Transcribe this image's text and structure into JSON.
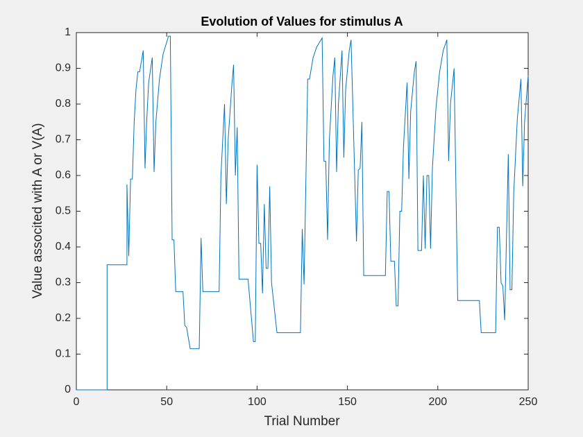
{
  "chart_data": {
    "type": "line",
    "title": "Evolution of Values for stimulus A",
    "xlabel": "Trial Number",
    "ylabel": "Value associted with A or V(A)",
    "xlim": [
      0,
      250
    ],
    "ylim": [
      0,
      1
    ],
    "xticks": [
      0,
      50,
      100,
      150,
      200,
      250
    ],
    "yticks": [
      0,
      0.1,
      0.2,
      0.3,
      0.4,
      0.5,
      0.6,
      0.7,
      0.8,
      0.9,
      1
    ],
    "color": "#0072bd",
    "x": [
      0,
      17,
      17,
      28,
      28,
      29,
      30,
      31,
      32,
      33,
      34,
      35,
      37,
      38,
      39,
      40,
      42,
      43,
      44,
      46,
      48,
      51,
      52,
      53,
      54,
      55,
      59,
      60,
      61,
      63,
      68,
      69,
      70,
      79,
      80,
      82,
      83,
      84,
      86,
      87,
      88,
      89,
      90,
      95,
      98,
      99,
      100,
      101,
      102,
      103,
      104,
      105,
      106,
      107,
      108,
      111,
      124,
      125,
      126,
      128,
      129,
      131,
      133,
      136,
      137,
      138,
      139,
      140,
      142,
      143,
      144,
      145,
      147,
      148,
      149,
      151,
      152,
      155,
      156,
      157,
      158,
      159,
      171,
      172,
      173,
      174,
      176,
      177,
      178,
      179,
      180,
      181,
      183,
      184,
      185,
      187,
      188,
      189,
      191,
      192,
      193,
      194,
      195,
      196,
      197,
      199,
      201,
      203,
      205,
      206,
      207,
      209,
      211,
      223,
      224,
      232,
      233,
      234,
      235,
      236,
      237,
      239,
      240,
      241,
      242,
      244,
      246,
      247,
      248,
      250
    ],
    "values": [
      0,
      0,
      0.35,
      0.35,
      0.575,
      0.375,
      0.59,
      0.59,
      0.75,
      0.84,
      0.89,
      0.89,
      0.95,
      0.62,
      0.76,
      0.86,
      0.93,
      0.61,
      0.75,
      0.87,
      0.94,
      0.99,
      0.99,
      0.42,
      0.42,
      0.275,
      0.275,
      0.18,
      0.175,
      0.115,
      0.115,
      0.425,
      0.275,
      0.275,
      0.6,
      0.8,
      0.52,
      0.7,
      0.85,
      0.91,
      0.6,
      0.735,
      0.31,
      0.31,
      0.135,
      0.135,
      0.63,
      0.41,
      0.41,
      0.27,
      0.52,
      0.34,
      0.34,
      0.57,
      0.3,
      0.16,
      0.16,
      0.45,
      0.295,
      0.87,
      0.87,
      0.93,
      0.96,
      0.985,
      0.64,
      0.64,
      0.42,
      0.7,
      0.88,
      0.93,
      0.61,
      0.8,
      0.95,
      0.65,
      0.84,
      0.95,
      0.98,
      0.415,
      0.615,
      0.62,
      0.75,
      0.32,
      0.32,
      0.555,
      0.555,
      0.36,
      0.36,
      0.235,
      0.235,
      0.5,
      0.5,
      0.68,
      0.86,
      0.59,
      0.78,
      0.89,
      0.92,
      0.39,
      0.39,
      0.6,
      0.395,
      0.6,
      0.6,
      0.395,
      0.62,
      0.79,
      0.89,
      0.95,
      0.98,
      0.64,
      0.8,
      0.9,
      0.25,
      0.25,
      0.16,
      0.16,
      0.455,
      0.455,
      0.3,
      0.29,
      0.195,
      0.66,
      0.28,
      0.28,
      0.55,
      0.76,
      0.87,
      0.57,
      0.75,
      0.88
    ]
  }
}
